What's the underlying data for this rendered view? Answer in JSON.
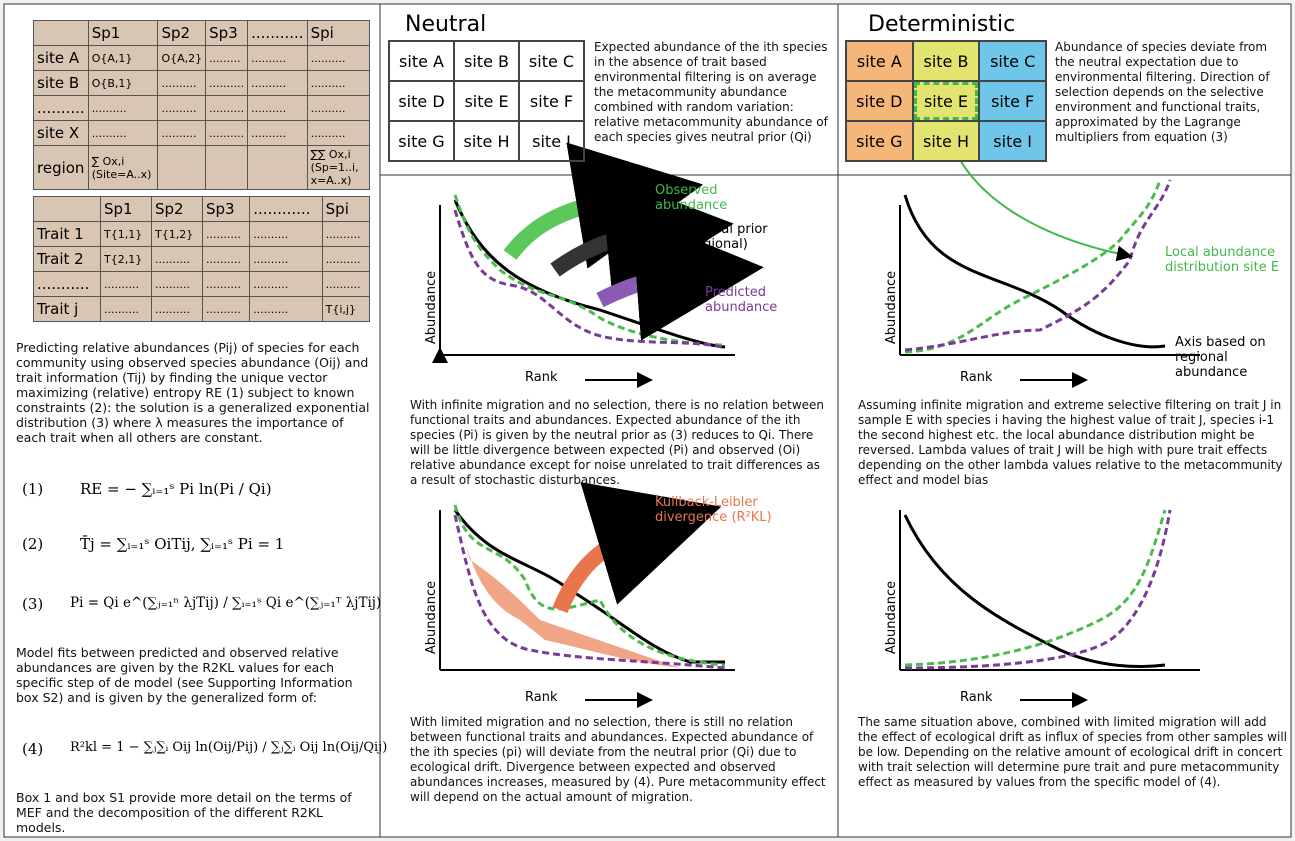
{
  "left": {
    "table1": {
      "header": [
        "Sp1",
        "Sp2",
        "Sp3",
        "...........",
        "Spi"
      ],
      "rows": [
        [
          "site A",
          "O{A,1}",
          "O{A,2}",
          ".........",
          "..........",
          ".........."
        ],
        [
          "site B",
          "O{B,1}",
          "..........",
          "..........",
          "..........",
          ".........."
        ],
        [
          "..........",
          "..........",
          "..........",
          "..........",
          "..........",
          ".........."
        ],
        [
          "site X",
          "..........",
          "..........",
          "..........",
          "..........",
          ".........."
        ],
        [
          "region",
          "∑ Ox,i (Site=A..x)",
          "",
          "",
          "",
          "∑∑ Ox,i (Sp=1..i, x=A..x)"
        ]
      ]
    },
    "table2": {
      "header": [
        "Sp1",
        "Sp2",
        "Sp3",
        "............",
        "Spi"
      ],
      "rows": [
        [
          "Trait 1",
          "T{1,1}",
          "T{1,2}",
          "..........",
          "..........",
          ".........."
        ],
        [
          "Trait 2",
          "T{2,1}",
          "..........",
          "..........",
          "..........",
          ".........."
        ],
        [
          "...........",
          "..........",
          "..........",
          "..........",
          "..........",
          ".........."
        ],
        [
          "Trait j",
          "..........",
          "..........",
          "..........",
          "..........",
          "T{i,j}"
        ]
      ]
    },
    "intro": "Predicting relative abundances (Pij) of species for each community using observed species abundance (Oij) and trait information (Tij) by finding the unique vector maximizing (relative) entropy RE (1) subject to known constraints (2): the solution is a generalized exponential distribution (3) where λ measures the importance of each trait when all others are constant.",
    "equations": [
      {
        "label": "(1)",
        "formula": "RE = − ∑ᵢ₌₁ˢ Pi ln(Pi / Qi)"
      },
      {
        "label": "(2)",
        "formula": "T̄j = ∑ᵢ₌₁ˢ OiTij,  ∑ᵢ₌₁ˢ Pi = 1"
      },
      {
        "label": "(3)",
        "formula": "Pi = Qi e^(∑ⱼ₌₁ⁿ λjTij) / ∑ᵢ₌₁ˢ Qi e^(∑ⱼ₌₁ᵀ λjTij)"
      }
    ],
    "fits": "Model fits between predicted and observed relative abundances are given by the R2KL values for each specific step of de model (see Supporting Information box S2) and is given by the generalized form of:",
    "equation4": {
      "label": "(4)",
      "formula": "R²kl = 1 − ∑ⱼ∑ᵢ Oij ln(Oij/Pij) / ∑ⱼ∑ᵢ Oij ln(Oij/Qij)"
    },
    "footer": "Box 1 and box S1 provide more detail on the terms of MEF and the decomposition of the different R2KL models."
  },
  "neutral": {
    "title": "Neutral",
    "sites": [
      "site A",
      "site B",
      "site C",
      "site D",
      "site E",
      "site F",
      "site G",
      "site H",
      "site I"
    ],
    "description": "Expected abundance of the ith species in the absence of trait based environmental filtering is on average the metacommunity abundance combined with random variation: relative metacommunity abundance of each species gives neutral prior (Qi)",
    "panel1": {
      "observed": "Observed abundance",
      "prior": "Neutral prior (regional)",
      "predicted": "Predicted abundance",
      "ylabel": "Abundance",
      "xlabel": "Rank",
      "caption": "With infinite migration and no selection, there is no relation between functional traits and abundances. Expected abundance of the ith species (Pi) is given by the neutral prior as (3) reduces to Qi. There will be little divergence between expected (Pi) and observed (Oi) relative abundance except for noise unrelated to trait differences as a result of stochastic disturbances."
    },
    "panel2": {
      "divergence": "Kullback-Leibler divergence (R²KL)",
      "ylabel": "Abundance",
      "xlabel": "Rank",
      "caption": "With limited migration and no selection, there is still no relation between functional traits and abundances. Expected abundance of the ith species (pi) will deviate from the neutral prior (Qi) due to ecological drift. Divergence between expected and observed abundances increases, measured by (4). Pure metacommunity effect will depend on the actual amount of migration."
    }
  },
  "deterministic": {
    "title": "Deterministic",
    "sites": [
      "site A",
      "site B",
      "site C",
      "site D",
      "site E",
      "site F",
      "site G",
      "site H",
      "site I"
    ],
    "description": "Abundance of species deviate from the neutral expectation due to environmental filtering. Direction of selection depends on the selective environment and functional traits, approximated by the Lagrange multipliers from equation (3)",
    "panel1": {
      "local": "Local abundance distribution site E",
      "axis": "Axis based on regional abundance",
      "ylabel": "Abundance",
      "xlabel": "Rank",
      "caption": "Assuming infinite migration and extreme selective filtering on trait J in sample E with species i having the highest value of trait J, species i-1 the second highest etc. the local abundance distribution might be reversed. Lambda values of trait J will be high with pure trait effects depending on the other lambda values relative to the metacommunity effect and model bias"
    },
    "panel2": {
      "ylabel": "Abundance",
      "xlabel": "Rank",
      "caption": "The same situation above, combined with limited migration will add the effect of ecological drift as influx of species from other samples will be low. Depending on the relative amount of ecological drift in concert with trait selection will determine pure trait and pure metacommunity effect as measured by values from the specific model of (4)."
    }
  }
}
